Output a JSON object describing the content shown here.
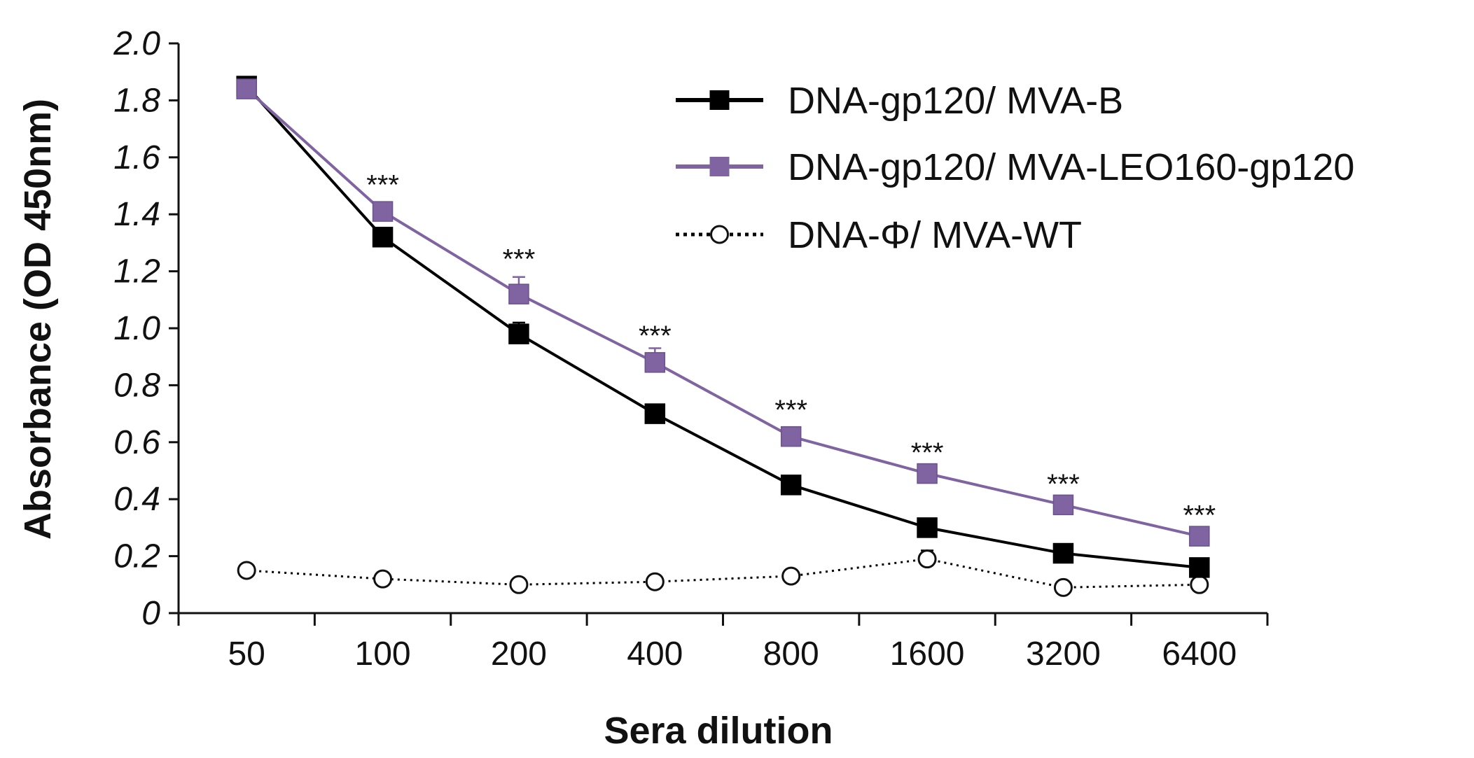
{
  "chart_data": {
    "type": "line",
    "title": "",
    "xlabel": "Sera dilution",
    "ylabel": "Absorbance (OD 450nm)",
    "categories": [
      "50",
      "100",
      "200",
      "400",
      "800",
      "1600",
      "3200",
      "6400"
    ],
    "ylim": [
      0,
      2.0
    ],
    "yticks": [
      "0",
      "0.2",
      "0.4",
      "0.6",
      "0.8",
      "1.0",
      "1.2",
      "1.4",
      "1.6",
      "1.8",
      "2.0"
    ],
    "grid": false,
    "legend_position": "top-right",
    "series": [
      {
        "name": "DNA-gp120/ MVA-B",
        "color": "#000000",
        "marker": "filled-square",
        "line_style": "solid",
        "values": [
          1.85,
          1.32,
          0.98,
          0.7,
          0.45,
          0.3,
          0.21,
          0.16
        ],
        "errors": [
          0.01,
          0.01,
          0.04,
          0.01,
          0.02,
          0.03,
          0.01,
          0.01
        ]
      },
      {
        "name": "DNA-gp120/ MVA-LEO160-gp120",
        "color": "#8064a2",
        "marker": "filled-square",
        "line_style": "solid",
        "values": [
          1.84,
          1.41,
          1.12,
          0.88,
          0.62,
          0.49,
          0.38,
          0.27
        ],
        "errors": [
          0.01,
          0.01,
          0.06,
          0.05,
          0.01,
          0.01,
          0.01,
          0.01
        ]
      },
      {
        "name": "DNA-Φ/ MVA-WT",
        "color": "#000000",
        "marker": "open-circle",
        "line_style": "dotted",
        "values": [
          0.15,
          0.12,
          0.1,
          0.11,
          0.13,
          0.19,
          0.09,
          0.1
        ],
        "errors": [
          0,
          0,
          0,
          0,
          0,
          0.03,
          0,
          0
        ]
      }
    ],
    "annotations": [
      {
        "category": "100",
        "text": "***",
        "y": 1.5
      },
      {
        "category": "200",
        "text": "***",
        "y": 1.24
      },
      {
        "category": "400",
        "text": "***",
        "y": 0.97
      },
      {
        "category": "800",
        "text": "***",
        "y": 0.71
      },
      {
        "category": "1600",
        "text": "***",
        "y": 0.56
      },
      {
        "category": "3200",
        "text": "***",
        "y": 0.45
      },
      {
        "category": "6400",
        "text": "***",
        "y": 0.34
      }
    ]
  }
}
